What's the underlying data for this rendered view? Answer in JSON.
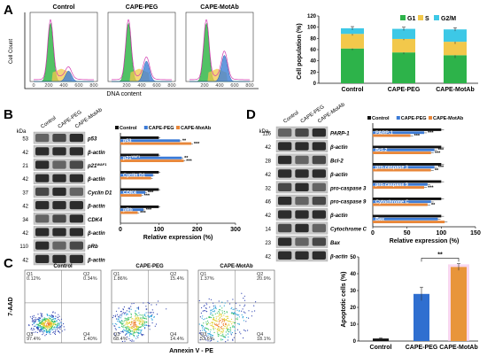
{
  "panels": {
    "A": {
      "letter": "A",
      "histograms": {
        "titles": [
          "Control",
          "CAPE-PEG",
          "CAPE-MotAb"
        ],
        "ylabel": "Cell Count",
        "xlabel": "DNA content",
        "x_ticks": [
          "0",
          "200",
          "400",
          "600",
          "800"
        ]
      },
      "cell_cycle_chart": {
        "type": "bar",
        "stacked": true,
        "categories": [
          "Control",
          "CAPE-PEG",
          "CAPE-MotAb"
        ],
        "series": [
          {
            "name": "G1",
            "color": "#2db34a",
            "values": [
              62,
              55,
              50
            ]
          },
          {
            "name": "S",
            "color": "#f2c84b",
            "values": [
              26,
              24,
              24
            ]
          },
          {
            "name": "G2/M",
            "color": "#3dc8e6",
            "values": [
              10,
              18,
              22
            ]
          }
        ],
        "errors": [
          [
            3,
            3,
            5
          ],
          [
            3,
            2,
            4
          ],
          [
            3,
            3,
            3
          ]
        ],
        "ylabel": "Cell population (%)",
        "ylim": [
          0,
          120
        ],
        "yticks": [
          "0",
          "20",
          "40",
          "60",
          "80",
          "100",
          "120"
        ],
        "legend": "top-right"
      }
    },
    "B": {
      "letter": "B",
      "kda_label": "kDa",
      "lane_labels": [
        "Control",
        "CAPE-PEG",
        "CAPE-MotAb"
      ],
      "markers": [
        "53",
        "42",
        "21",
        "42",
        "37",
        "42",
        "34",
        "42",
        "110",
        "42"
      ],
      "protein_rows": [
        {
          "name": "p53",
          "sup": ""
        },
        {
          "name": "β-actin",
          "sup": ""
        },
        {
          "name": "p21",
          "sup": "WAF1"
        },
        {
          "name": "β-actin",
          "sup": ""
        },
        {
          "name": "Cyclin D1",
          "sup": ""
        },
        {
          "name": "β-actin",
          "sup": ""
        },
        {
          "name": "CDK4",
          "sup": ""
        },
        {
          "name": "β-actin",
          "sup": ""
        },
        {
          "name": "pRb",
          "sup": ""
        },
        {
          "name": "β-actin",
          "sup": ""
        }
      ],
      "expression_chart": {
        "type": "bar",
        "orientation": "horizontal",
        "legend": [
          "Control",
          "CAPE-PEG",
          "CAPE-MotAb"
        ],
        "colors": [
          "#111111",
          "#3c7bd6",
          "#e8873a"
        ],
        "groups": [
          {
            "label": "p53",
            "values": [
              100,
              155,
              185
            ],
            "sig": [
              "",
              "**",
              "***"
            ]
          },
          {
            "label": "p21",
            "sup": "WAF1",
            "values": [
              100,
              160,
              165
            ],
            "sig": [
              "",
              "**",
              "***"
            ]
          },
          {
            "label": "Cyclin D1",
            "values": [
              100,
              85,
              80
            ],
            "sig": [
              "",
              "",
              ""
            ]
          },
          {
            "label": "CDK4",
            "values": [
              100,
              65,
              55
            ],
            "sig": [
              "",
              "***",
              "***"
            ]
          },
          {
            "label": "pRb",
            "values": [
              100,
              60,
              45
            ],
            "sig": [
              "",
              "***",
              "***"
            ]
          }
        ],
        "xlabel": "Relative expression (%)",
        "xlim": [
          0,
          300
        ],
        "xticks": [
          "0",
          "100",
          "200",
          "300"
        ]
      }
    },
    "C": {
      "letter": "C",
      "scatter_titles": [
        "Control",
        "CAPE-PEG",
        "CAPE-MotAb"
      ],
      "ylabel": "7-AAD",
      "xlabel": "Annexin V - PE",
      "quadrant_labels": [
        "Q1",
        "Q2",
        "Q3",
        "Q4"
      ],
      "quadrant_values": [
        [
          "0.12%",
          "0.34%",
          "97.4%",
          "1.40%"
        ],
        [
          "1.86%",
          "15.4%",
          "68.4%",
          "14.4%"
        ],
        [
          "1.37%",
          "20.9%",
          "53.6%",
          "18.1%"
        ]
      ],
      "apoptosis_chart": {
        "type": "bar",
        "categories": [
          "Control",
          "CAPE-PEG",
          "CAPE-MotAb"
        ],
        "values": [
          1.5,
          28,
          44
        ],
        "errors": [
          0.4,
          4,
          2
        ],
        "colors": [
          "#111111",
          "#2f6fd0",
          "#e8953a"
        ],
        "ylabel": "Apoptotic cells (%)",
        "ylim": [
          0,
          50
        ],
        "yticks": [
          "0",
          "10",
          "20",
          "30",
          "40",
          "50"
        ],
        "significance": "**"
      }
    },
    "D": {
      "letter": "D",
      "kda_label": "kDa",
      "lane_labels": [
        "Control",
        "CAPE-PEG",
        "CAPE-MotAb"
      ],
      "markers": [
        "116",
        "42",
        "28",
        "42",
        "32",
        "46",
        "42",
        "14",
        "23",
        "42"
      ],
      "protein_rows": [
        {
          "name": "PARP-1"
        },
        {
          "name": "β-actin"
        },
        {
          "name": "Bcl-2"
        },
        {
          "name": "β-actin"
        },
        {
          "name": "pro-caspase 3"
        },
        {
          "name": "pro-caspase 9"
        },
        {
          "name": "β-actin"
        },
        {
          "name": "Cytochrome C"
        },
        {
          "name": "Bax"
        },
        {
          "name": "β-actin"
        }
      ],
      "expression_chart": {
        "type": "bar",
        "orientation": "horizontal",
        "legend": [
          "Control",
          "CAPE-PEG",
          "CAPE-MotAb"
        ],
        "colors": [
          "#111111",
          "#3c7bd6",
          "#e8873a"
        ],
        "groups": [
          {
            "label": "PARP-1",
            "values": [
              100,
              75,
              55
            ],
            "sig": [
              "",
              "***",
              "***"
            ]
          },
          {
            "label": "Bcl-2",
            "values": [
              100,
              90,
              85
            ],
            "sig": [
              "",
              "***",
              "***"
            ]
          },
          {
            "label": "pro-caspase 3",
            "values": [
              100,
              90,
              85
            ],
            "sig": [
              "",
              "***",
              "**"
            ]
          },
          {
            "label": "pro-caspase 9",
            "values": [
              100,
              80,
              75
            ],
            "sig": [
              "",
              "",
              "***"
            ]
          },
          {
            "label": "Cytochrome C",
            "values": [
              100,
              85,
              80
            ],
            "sig": [
              "",
              "",
              "**"
            ]
          },
          {
            "label": "Bax",
            "values": [
              100,
              95,
              105
            ],
            "sig": [
              "",
              "",
              ""
            ]
          }
        ],
        "xlabel": "Relative expression (%)",
        "xlim": [
          0,
          150
        ],
        "xticks": [
          "0",
          "50",
          "100",
          "150"
        ]
      }
    }
  }
}
